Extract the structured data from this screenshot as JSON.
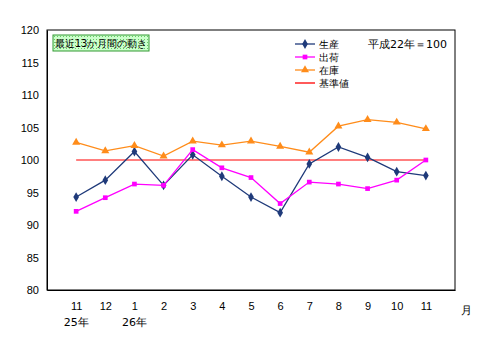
{
  "chart_data": {
    "type": "line",
    "title": "最近13か月間の動き",
    "annotation": "平成22年＝100",
    "x_label": "月",
    "categories": [
      "11",
      "12",
      "1",
      "2",
      "3",
      "4",
      "5",
      "6",
      "7",
      "8",
      "9",
      "10",
      "11"
    ],
    "year_labels": [
      "25年",
      null,
      "26年",
      null,
      null,
      null,
      null,
      null,
      null,
      null,
      null,
      null,
      null
    ],
    "series": [
      {
        "name": "生産",
        "color": "#1f3a7a",
        "marker": "diamond",
        "values": [
          94.3,
          96.9,
          101.3,
          96.1,
          100.8,
          97.5,
          94.3,
          91.9,
          99.4,
          102.0,
          100.4,
          98.2,
          97.6
        ]
      },
      {
        "name": "出荷",
        "color": "#ff00ff",
        "marker": "square",
        "values": [
          92.1,
          94.2,
          96.3,
          96.1,
          101.6,
          98.8,
          97.3,
          93.3,
          96.6,
          96.3,
          95.6,
          96.9,
          100.0
        ]
      },
      {
        "name": "在庫",
        "color": "#ff8c1a",
        "marker": "triangle",
        "values": [
          102.7,
          101.4,
          102.2,
          100.6,
          102.9,
          102.3,
          102.9,
          102.1,
          101.2,
          105.2,
          106.2,
          105.8,
          104.8
        ]
      },
      {
        "name": "基準値",
        "color": "#ff0000",
        "marker": "none",
        "values": [
          100,
          100,
          100,
          100,
          100,
          100,
          100,
          100,
          100,
          100,
          100,
          100,
          100
        ]
      }
    ],
    "ylim": [
      80,
      120
    ],
    "yticks": [
      80,
      85,
      90,
      95,
      100,
      105,
      110,
      115,
      120
    ],
    "grid": false,
    "legend": "top-right"
  }
}
